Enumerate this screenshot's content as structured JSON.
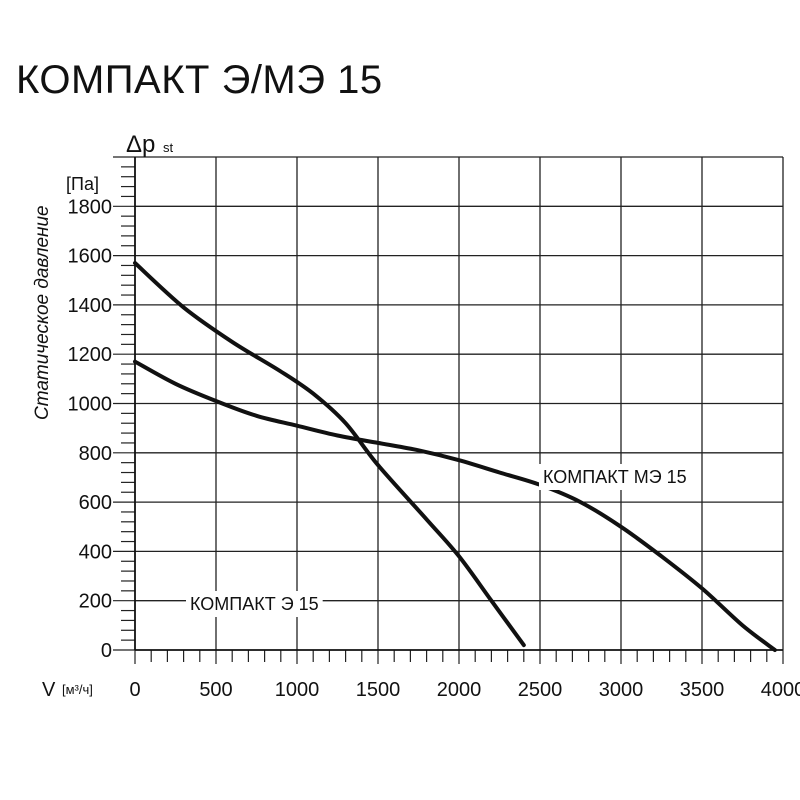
{
  "chart_data": {
    "type": "line",
    "title": "КОМПАКТ Э/МЭ 15",
    "ylabel": "Статическое давление",
    "ylabel_symbol": "Δp",
    "ylabel_subscript": "st",
    "yunit": "[Па]",
    "xlabel": "V",
    "xunit": "[м³/ч]",
    "xlim": [
      0,
      4000
    ],
    "ylim": [
      0,
      2000
    ],
    "x_ticks": [
      "0",
      "500",
      "1000",
      "1500",
      "2000",
      "2500",
      "3000",
      "3500",
      "4000"
    ],
    "y_ticks": [
      "0",
      "200",
      "400",
      "600",
      "800",
      "1000",
      "1200",
      "1400",
      "1600",
      "1800"
    ],
    "grid": true,
    "series": [
      {
        "name": "КОМПАКТ Э 15",
        "x": [
          0,
          300,
          600,
          900,
          1100,
          1300,
          1500,
          1800,
          2000,
          2200,
          2400
        ],
        "y": [
          1570,
          1390,
          1250,
          1130,
          1040,
          920,
          750,
          530,
          380,
          200,
          20
        ]
      },
      {
        "name": "КОМПАКТ МЭ 15",
        "x": [
          0,
          250,
          500,
          750,
          1000,
          1250,
          1500,
          1750,
          2000,
          2250,
          2500,
          2750,
          3000,
          3250,
          3500,
          3750,
          3950
        ],
        "y": [
          1170,
          1080,
          1010,
          950,
          910,
          870,
          840,
          810,
          770,
          720,
          670,
          600,
          500,
          380,
          250,
          100,
          0
        ]
      }
    ]
  }
}
